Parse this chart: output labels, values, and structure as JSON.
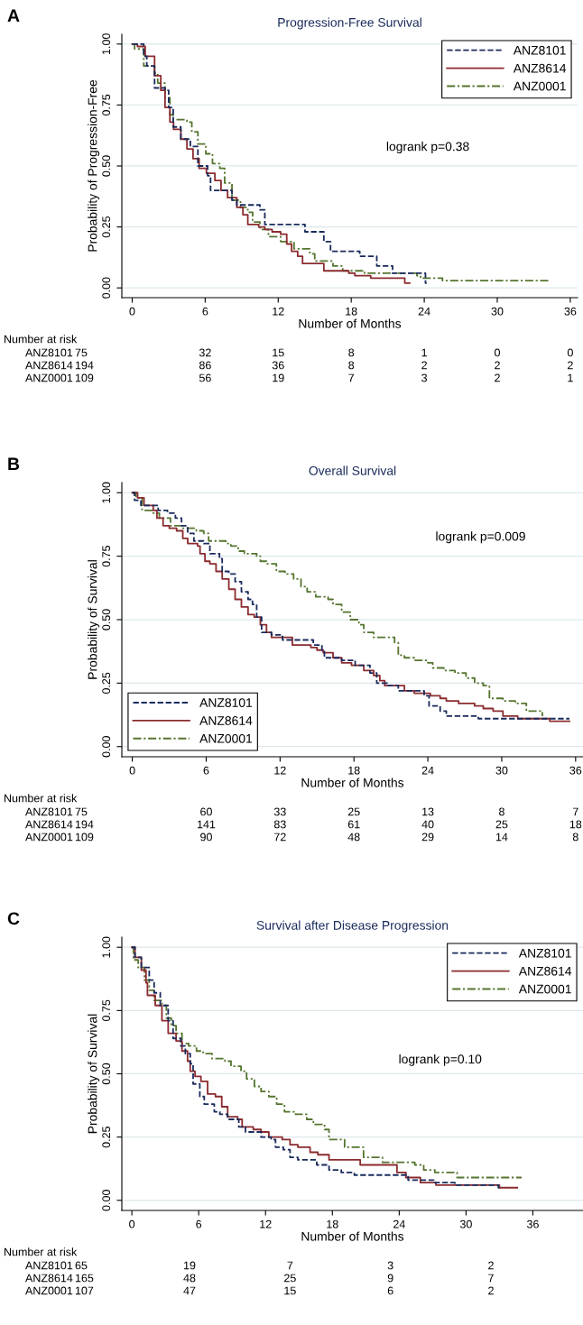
{
  "chart_data": [
    {
      "type": "step",
      "title": "Progression-Free Survival",
      "xlabel": "Number of Months",
      "ylabel": "Probability of Progression-Free",
      "annotations": [
        "A",
        "logrank p=0.38",
        "Number at risk",
        "ANZ8101 75 32 15 8 1 0 0",
        "ANZ8614 194 86 36 8 2 2 2",
        "ANZ0001 109 56 19 7 3 2 1"
      ],
      "xlim": [
        -0.85,
        36.6
      ],
      "ylim": [
        -0.04,
        1.04
      ],
      "xticks": [
        0,
        6,
        12,
        18,
        24,
        30,
        36
      ],
      "yticks": [
        {
          "value": 0,
          "label": "0.00"
        },
        {
          "value": 0.25,
          "label": "0.25"
        },
        {
          "value": 0.5,
          "label": "0.50"
        },
        {
          "value": 0.75,
          "label": "0.75"
        },
        {
          "value": 1,
          "label": "1.00"
        }
      ],
      "grid": "y",
      "legend": "top right",
      "series": [
        {
          "name": "ANZ8101",
          "color": "#1a2b5c",
          "line_style": "dashed",
          "x": [
            0,
            0.95,
            1.2,
            1.84,
            2.7,
            3.0,
            3.37,
            4.0,
            4.78,
            5.4,
            6.2,
            6.44,
            8.2,
            8.6,
            10.5,
            10.9,
            14.2,
            15.75,
            16.3,
            18.7,
            20.1,
            21.4,
            24.1,
            24.2
          ],
          "values": [
            1.0,
            0.95,
            0.91,
            0.82,
            0.81,
            0.74,
            0.66,
            0.61,
            0.58,
            0.5,
            0.46,
            0.4,
            0.36,
            0.34,
            0.32,
            0.26,
            0.23,
            0.19,
            0.15,
            0.13,
            0.09,
            0.06,
            0.02,
            0.02
          ]
        },
        {
          "name": "ANZ8614",
          "color": "#8b2b2f",
          "line_style": "solid",
          "x": [
            0,
            0.43,
            1.07,
            1.84,
            2.35,
            2.7,
            3.1,
            3.4,
            4.0,
            4.5,
            5.0,
            5.5,
            6.1,
            6.8,
            7.3,
            7.84,
            8.6,
            9.1,
            9.5,
            10.4,
            10.9,
            11.5,
            12.2,
            12.7,
            13.1,
            13.6,
            14.0,
            15.75,
            17.8,
            18.3,
            19.6,
            22.4,
            22.8
          ],
          "values": [
            1.0,
            0.99,
            0.95,
            0.87,
            0.81,
            0.74,
            0.68,
            0.65,
            0.61,
            0.57,
            0.53,
            0.49,
            0.47,
            0.44,
            0.4,
            0.37,
            0.33,
            0.3,
            0.26,
            0.25,
            0.24,
            0.23,
            0.22,
            0.18,
            0.15,
            0.13,
            0.1,
            0.07,
            0.06,
            0.05,
            0.04,
            0.02,
            0.02
          ]
        },
        {
          "name": "ANZ0001",
          "color": "#55752f",
          "line_style": "dashdot",
          "x": [
            0,
            0.2,
            0.95,
            1.84,
            2.1,
            2.7,
            3.1,
            3.37,
            4.5,
            4.9,
            5.4,
            6.05,
            6.6,
            7.2,
            7.6,
            8.2,
            8.9,
            9.5,
            9.9,
            10.5,
            11.2,
            12.2,
            13.3,
            14.6,
            15.0,
            16.5,
            17.3,
            17.8,
            19.1,
            23.4,
            23.7,
            24.4,
            25.5,
            34.3
          ],
          "values": [
            1.0,
            0.98,
            0.91,
            0.88,
            0.84,
            0.78,
            0.71,
            0.69,
            0.68,
            0.64,
            0.59,
            0.55,
            0.51,
            0.49,
            0.43,
            0.36,
            0.33,
            0.31,
            0.27,
            0.24,
            0.21,
            0.19,
            0.16,
            0.14,
            0.11,
            0.09,
            0.07,
            0.07,
            0.06,
            0.05,
            0.04,
            0.04,
            0.03,
            0.03
          ]
        }
      ]
    },
    {
      "type": "step",
      "title": "Overall Survival",
      "xlabel": "Number of Months",
      "ylabel": "Probability of Survival",
      "annotations": [
        "B",
        "logrank p=0.009",
        "Number at risk",
        "ANZ8101 75 60 33 25 13 8 7",
        "ANZ8614 194 141 83 61 40 25 18",
        "ANZ0001 109 90 72 48 29 14 8"
      ],
      "xlim": [
        -0.85,
        36.6
      ],
      "ylim": [
        -0.04,
        1.04
      ],
      "xticks": [
        0,
        6,
        12,
        18,
        24,
        30,
        36
      ],
      "yticks": [
        {
          "value": 0,
          "label": "0.00"
        },
        {
          "value": 0.25,
          "label": "0.25"
        },
        {
          "value": 0.5,
          "label": "0.50"
        },
        {
          "value": 0.75,
          "label": "0.75"
        },
        {
          "value": 1,
          "label": "1.00"
        }
      ],
      "grid": "y",
      "legend": "bottom left",
      "series": [
        {
          "name": "ANZ8101",
          "color": "#1a2b5c",
          "line_style": "dashed",
          "x": [
            0,
            0.18,
            0.7,
            2.1,
            2.86,
            3.5,
            4.0,
            4.5,
            5.0,
            5.8,
            6.3,
            7.08,
            7.3,
            7.84,
            8.35,
            8.86,
            9.4,
            9.76,
            10.1,
            10.5,
            11.3,
            12.2,
            14.7,
            15.4,
            15.6,
            17.0,
            18.1,
            19.3,
            19.85,
            20.7,
            21.6,
            23.7,
            24.1,
            25.0,
            25.5,
            28.1,
            35.5
          ],
          "values": [
            1.0,
            0.97,
            0.95,
            0.93,
            0.92,
            0.9,
            0.87,
            0.84,
            0.81,
            0.8,
            0.76,
            0.74,
            0.69,
            0.68,
            0.65,
            0.61,
            0.58,
            0.56,
            0.51,
            0.45,
            0.44,
            0.42,
            0.4,
            0.38,
            0.35,
            0.34,
            0.32,
            0.29,
            0.25,
            0.24,
            0.22,
            0.2,
            0.16,
            0.14,
            0.12,
            0.11,
            0.11
          ]
        },
        {
          "name": "ANZ8614",
          "color": "#8b2b2f",
          "line_style": "solid",
          "x": [
            0,
            0.43,
            0.95,
            1.7,
            2.0,
            2.5,
            3.0,
            3.6,
            4.1,
            4.5,
            5.3,
            5.5,
            5.9,
            6.3,
            6.8,
            7.3,
            7.84,
            8.35,
            8.86,
            9.4,
            9.9,
            10.4,
            10.9,
            11.3,
            12.2,
            13.0,
            14.5,
            15.0,
            15.5,
            16.3,
            17.0,
            17.8,
            18.8,
            19.6,
            20.1,
            20.5,
            21.1,
            22.1,
            22.9,
            24.2,
            25.0,
            25.5,
            26.5,
            27.8,
            28.5,
            29.3,
            30.1,
            31.3,
            32.6,
            33.9,
            35.5
          ],
          "values": [
            1.0,
            0.98,
            0.95,
            0.93,
            0.9,
            0.87,
            0.86,
            0.85,
            0.82,
            0.8,
            0.79,
            0.76,
            0.73,
            0.72,
            0.69,
            0.66,
            0.62,
            0.58,
            0.55,
            0.52,
            0.51,
            0.48,
            0.45,
            0.43,
            0.43,
            0.4,
            0.39,
            0.38,
            0.37,
            0.35,
            0.33,
            0.32,
            0.3,
            0.28,
            0.26,
            0.24,
            0.24,
            0.22,
            0.21,
            0.2,
            0.19,
            0.18,
            0.17,
            0.16,
            0.15,
            0.14,
            0.12,
            0.11,
            0.11,
            0.1,
            0.1
          ]
        },
        {
          "name": "ANZ0001",
          "color": "#55752f",
          "line_style": "dashdot",
          "x": [
            0,
            0.3,
            0.8,
            1.7,
            2.2,
            3.1,
            4.0,
            5.2,
            5.8,
            6.2,
            7.6,
            8.0,
            8.6,
            9.1,
            10.1,
            10.4,
            10.9,
            11.7,
            12.4,
            13.1,
            13.7,
            14.2,
            14.9,
            15.9,
            16.3,
            17.0,
            17.7,
            18.4,
            18.8,
            19.6,
            20.6,
            21.3,
            21.6,
            22.1,
            22.9,
            24.0,
            24.4,
            25.3,
            26.2,
            27.1,
            27.8,
            28.5,
            29.0,
            30.1,
            31.1,
            32.0,
            33.3
          ],
          "values": [
            1.0,
            0.98,
            0.93,
            0.92,
            0.9,
            0.87,
            0.86,
            0.85,
            0.84,
            0.81,
            0.8,
            0.79,
            0.77,
            0.76,
            0.75,
            0.73,
            0.72,
            0.69,
            0.68,
            0.66,
            0.63,
            0.61,
            0.59,
            0.58,
            0.56,
            0.53,
            0.5,
            0.48,
            0.45,
            0.43,
            0.43,
            0.41,
            0.36,
            0.35,
            0.34,
            0.33,
            0.31,
            0.3,
            0.29,
            0.27,
            0.25,
            0.24,
            0.19,
            0.18,
            0.17,
            0.14,
            0.12
          ]
        }
      ]
    },
    {
      "type": "step",
      "title": "Survival after Disease Progression",
      "xlabel": "Number of Months",
      "ylabel": "Probability of Survival",
      "annotations": [
        "C",
        "logrank p=0.10",
        "Number at risk",
        "ANZ8101 65 19 7 3 2",
        "ANZ8614 165 48 25 9 7",
        "ANZ0001 107 47 15 6 2"
      ],
      "xlim": [
        -0.9,
        40.5
      ],
      "ylim": [
        -0.04,
        1.04
      ],
      "xticks": [
        0,
        6,
        12,
        18,
        24,
        30,
        36
      ],
      "yticks": [
        {
          "value": 0,
          "label": "0.00"
        },
        {
          "value": 0.25,
          "label": "0.25"
        },
        {
          "value": 0.5,
          "label": "0.50"
        },
        {
          "value": 0.75,
          "label": "0.75"
        },
        {
          "value": 1,
          "label": "1.00"
        }
      ],
      "grid": "y",
      "legend": "top right",
      "series": [
        {
          "name": "ANZ8101",
          "color": "#1a2b5c",
          "line_style": "dashed",
          "x": [
            0,
            0.28,
            0.85,
            1.56,
            2.0,
            2.55,
            3.26,
            3.7,
            4.4,
            4.8,
            5.24,
            5.5,
            6.1,
            6.5,
            7.4,
            7.9,
            8.6,
            9.6,
            10.2,
            11.6,
            12.5,
            12.9,
            13.6,
            14.2,
            14.9,
            16.6,
            17.7,
            18.8,
            19.97,
            24.8,
            27.1,
            29.0,
            32.9,
            33.0
          ],
          "values": [
            1.0,
            0.96,
            0.92,
            0.87,
            0.82,
            0.77,
            0.71,
            0.64,
            0.61,
            0.58,
            0.54,
            0.46,
            0.41,
            0.38,
            0.35,
            0.34,
            0.32,
            0.29,
            0.27,
            0.25,
            0.24,
            0.21,
            0.2,
            0.17,
            0.16,
            0.14,
            0.12,
            0.11,
            0.1,
            0.08,
            0.07,
            0.06,
            0.05,
            0.05
          ]
        },
        {
          "name": "ANZ8614",
          "color": "#8b2b2f",
          "line_style": "solid",
          "x": [
            0,
            0.28,
            0.85,
            1.27,
            1.4,
            2.1,
            2.7,
            3.26,
            3.97,
            4.5,
            5.0,
            5.24,
            5.67,
            6.2,
            6.8,
            7.5,
            8.07,
            8.6,
            9.5,
            9.9,
            10.9,
            11.6,
            12.3,
            13.5,
            14.2,
            14.9,
            16.0,
            16.7,
            17.7,
            19.7,
            20.5,
            23.1,
            23.8,
            24.6,
            25.9,
            27.3,
            28.8,
            33.0,
            34.6
          ],
          "values": [
            1.0,
            0.96,
            0.91,
            0.86,
            0.81,
            0.77,
            0.71,
            0.66,
            0.63,
            0.59,
            0.55,
            0.51,
            0.49,
            0.47,
            0.42,
            0.41,
            0.37,
            0.33,
            0.32,
            0.29,
            0.28,
            0.27,
            0.25,
            0.24,
            0.22,
            0.21,
            0.19,
            0.18,
            0.16,
            0.16,
            0.14,
            0.14,
            0.11,
            0.09,
            0.07,
            0.06,
            0.06,
            0.05,
            0.05
          ]
        },
        {
          "name": "ANZ0001",
          "color": "#55752f",
          "line_style": "dashdot",
          "x": [
            0,
            0.14,
            0.57,
            1.13,
            1.56,
            2.0,
            2.7,
            3.1,
            3.54,
            3.97,
            4.5,
            5.1,
            5.8,
            6.4,
            7.2,
            8.36,
            8.9,
            9.8,
            10.3,
            11.0,
            11.6,
            12.3,
            13.0,
            13.7,
            14.7,
            15.7,
            16.3,
            17.3,
            17.7,
            18.8,
            19.1,
            20.8,
            22.5,
            25.4,
            26.2,
            27.2,
            29.2,
            35.0
          ],
          "values": [
            1.0,
            0.95,
            0.92,
            0.87,
            0.83,
            0.79,
            0.77,
            0.72,
            0.69,
            0.66,
            0.62,
            0.61,
            0.59,
            0.58,
            0.56,
            0.55,
            0.53,
            0.51,
            0.48,
            0.45,
            0.43,
            0.41,
            0.38,
            0.35,
            0.34,
            0.32,
            0.3,
            0.28,
            0.24,
            0.24,
            0.21,
            0.17,
            0.15,
            0.14,
            0.12,
            0.11,
            0.09,
            0.09
          ]
        }
      ]
    }
  ]
}
